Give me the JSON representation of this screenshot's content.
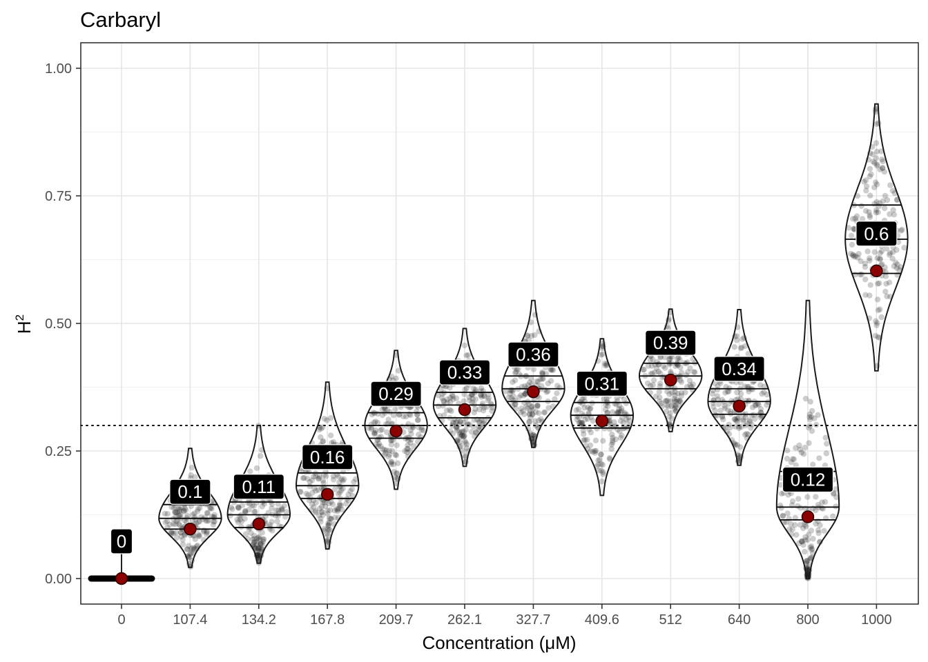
{
  "chart_data": {
    "type": "violin",
    "title": "Carbaryl",
    "xlabel": "Concentration (μM)",
    "ylabel": "H",
    "ylabel_superscript": "2",
    "categories": [
      "0",
      "107.4",
      "134.2",
      "167.8",
      "209.7",
      "262.1",
      "327.7",
      "409.6",
      "512",
      "640",
      "800",
      "1000"
    ],
    "ylim": [
      -0.05,
      1.05
    ],
    "yticks": [
      0.0,
      0.25,
      0.5,
      0.75,
      1.0
    ],
    "ytick_labels": [
      "0.00",
      "0.25",
      "0.50",
      "0.75",
      "1.00"
    ],
    "reference_line": 0.3,
    "grid": true,
    "colors": {
      "point": "#8b0000",
      "label_bg": "#000000",
      "label_text": "#ffffff",
      "violin": "#000000"
    },
    "series": [
      {
        "label": "0",
        "mean": 0.0,
        "min": 0.0,
        "max": 0.085,
        "q1": 0.0,
        "median": 0.0,
        "q3": 0.0
      },
      {
        "label": "0.1",
        "mean": 0.097,
        "min": 0.022,
        "max": 0.255,
        "q1": 0.097,
        "median": 0.118,
        "q3": 0.145
      },
      {
        "label": "0.11",
        "mean": 0.107,
        "min": 0.03,
        "max": 0.3,
        "q1": 0.1,
        "median": 0.125,
        "q3": 0.15
      },
      {
        "label": "0.16",
        "mean": 0.165,
        "min": 0.058,
        "max": 0.385,
        "q1": 0.157,
        "median": 0.182,
        "q3": 0.207
      },
      {
        "label": "0.29",
        "mean": 0.289,
        "min": 0.175,
        "max": 0.447,
        "q1": 0.275,
        "median": 0.3,
        "q3": 0.325
      },
      {
        "label": "0.33",
        "mean": 0.331,
        "min": 0.22,
        "max": 0.49,
        "q1": 0.315,
        "median": 0.34,
        "q3": 0.365
      },
      {
        "label": "0.36",
        "mean": 0.366,
        "min": 0.257,
        "max": 0.545,
        "q1": 0.347,
        "median": 0.372,
        "q3": 0.397
      },
      {
        "label": "0.31",
        "mean": 0.309,
        "min": 0.163,
        "max": 0.47,
        "q1": 0.295,
        "median": 0.32,
        "q3": 0.345
      },
      {
        "label": "0.39",
        "mean": 0.389,
        "min": 0.288,
        "max": 0.528,
        "q1": 0.372,
        "median": 0.397,
        "q3": 0.422
      },
      {
        "label": "0.34",
        "mean": 0.338,
        "min": 0.222,
        "max": 0.527,
        "q1": 0.322,
        "median": 0.347,
        "q3": 0.372
      },
      {
        "label": "0.12",
        "mean": 0.121,
        "min": 0.0,
        "max": 0.545,
        "q1": 0.115,
        "median": 0.14,
        "q3": 0.21
      },
      {
        "label": "0.6",
        "mean": 0.603,
        "min": 0.407,
        "max": 0.93,
        "q1": 0.598,
        "median": 0.665,
        "q3": 0.732
      }
    ]
  }
}
